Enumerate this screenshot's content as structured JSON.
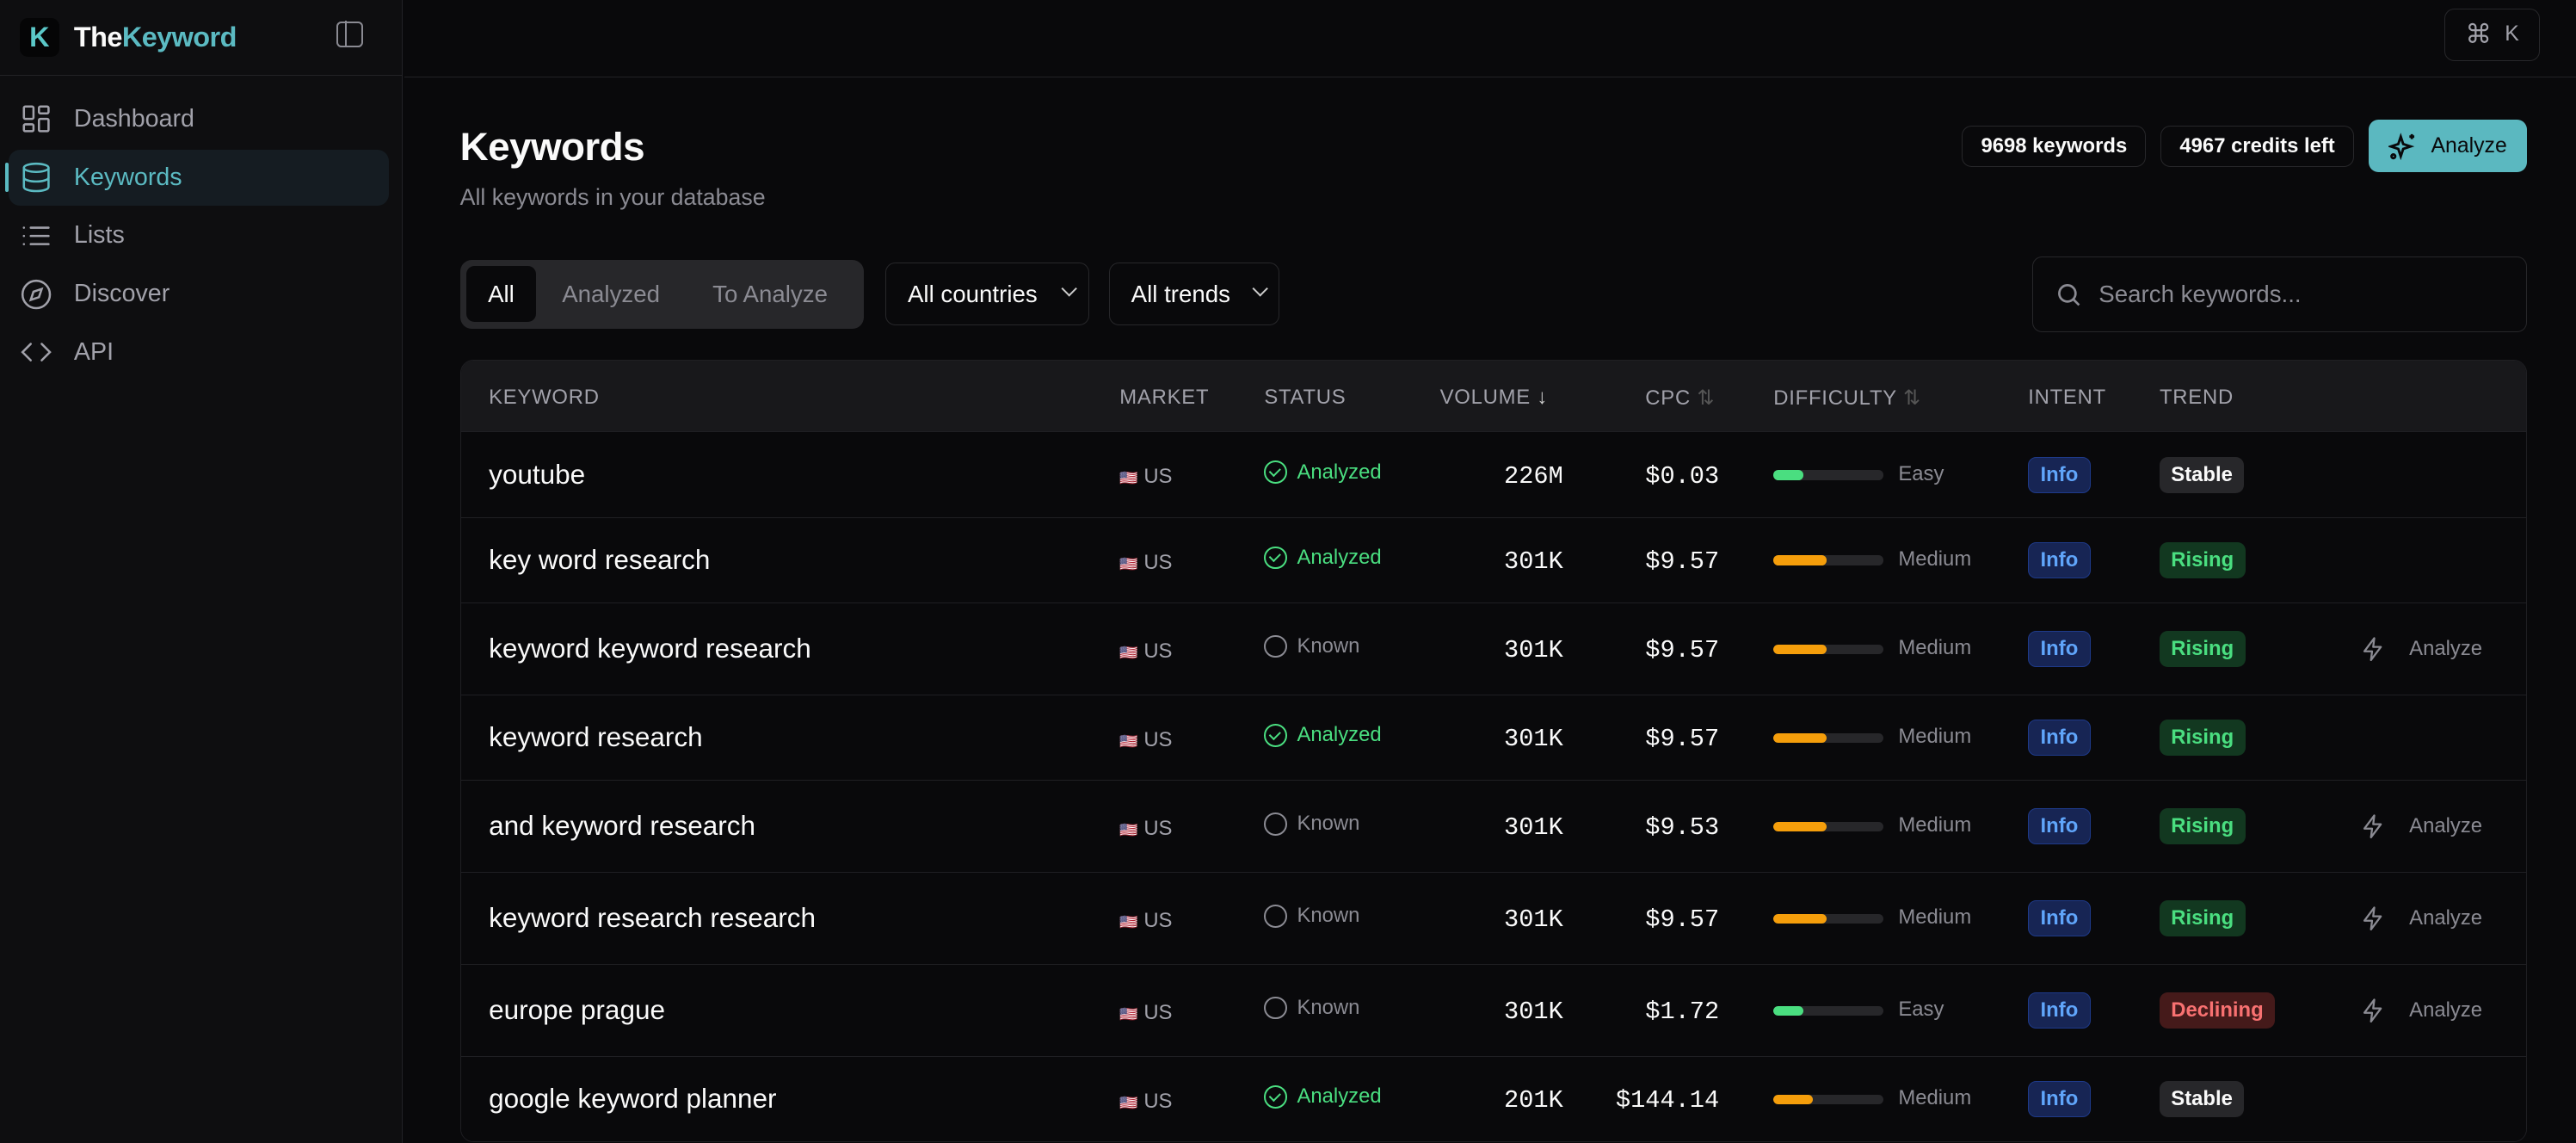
{
  "brand": {
    "name_a": "The",
    "name_b": "Keyword",
    "logo": "K"
  },
  "sidebar": {
    "items": [
      {
        "label": "Dashboard",
        "icon": "dashboard-icon"
      },
      {
        "label": "Keywords",
        "icon": "database-icon",
        "active": true
      },
      {
        "label": "Lists",
        "icon": "list-icon"
      },
      {
        "label": "Discover",
        "icon": "compass-icon"
      },
      {
        "label": "API",
        "icon": "code-icon"
      }
    ]
  },
  "topbar": {
    "cmd_symbol": "⌘",
    "cmd_key": "K"
  },
  "header": {
    "title": "Keywords",
    "subtitle": "All keywords in your database",
    "keywords_count": "9698 keywords",
    "credits": "4967 credits left",
    "analyze_label": "Analyze"
  },
  "filters": {
    "tabs": [
      "All",
      "Analyzed",
      "To Analyze"
    ],
    "active_tab": "All",
    "country": "All countries",
    "trend": "All trends",
    "search_placeholder": "Search keywords..."
  },
  "table": {
    "columns": [
      "KEYWORD",
      "MARKET",
      "STATUS",
      "VOLUME",
      "CPC",
      "DIFFICULTY",
      "INTENT",
      "TREND"
    ],
    "sort_icons": {
      "volume": "↓",
      "cpc": "⇅",
      "difficulty": "⇅"
    },
    "action_label": "Analyze",
    "colors": {
      "easy": "#4ade80",
      "medium": "#f59e0b"
    },
    "rows": [
      {
        "keyword": "youtube",
        "market": "US",
        "status": "Analyzed",
        "volume": "226M",
        "cpc": "$0.03",
        "difficulty": "Easy",
        "difficulty_level": 0.27,
        "intent": "Info",
        "trend": "Stable",
        "action": false
      },
      {
        "keyword": "key word research",
        "market": "US",
        "status": "Analyzed",
        "volume": "301K",
        "cpc": "$9.57",
        "difficulty": "Medium",
        "difficulty_level": 0.48,
        "intent": "Info",
        "trend": "Rising",
        "action": false
      },
      {
        "keyword": "keyword keyword research",
        "market": "US",
        "status": "Known",
        "volume": "301K",
        "cpc": "$9.57",
        "difficulty": "Medium",
        "difficulty_level": 0.48,
        "intent": "Info",
        "trend": "Rising",
        "action": true
      },
      {
        "keyword": "keyword research",
        "market": "US",
        "status": "Analyzed",
        "volume": "301K",
        "cpc": "$9.57",
        "difficulty": "Medium",
        "difficulty_level": 0.48,
        "intent": "Info",
        "trend": "Rising",
        "action": false
      },
      {
        "keyword": "and keyword research",
        "market": "US",
        "status": "Known",
        "volume": "301K",
        "cpc": "$9.53",
        "difficulty": "Medium",
        "difficulty_level": 0.48,
        "intent": "Info",
        "trend": "Rising",
        "action": true
      },
      {
        "keyword": "keyword research research",
        "market": "US",
        "status": "Known",
        "volume": "301K",
        "cpc": "$9.57",
        "difficulty": "Medium",
        "difficulty_level": 0.48,
        "intent": "Info",
        "trend": "Rising",
        "action": true
      },
      {
        "keyword": "europe prague",
        "market": "US",
        "status": "Known",
        "volume": "301K",
        "cpc": "$1.72",
        "difficulty": "Easy",
        "difficulty_level": 0.27,
        "intent": "Info",
        "trend": "Declining",
        "action": true
      },
      {
        "keyword": "google keyword planner",
        "market": "US",
        "status": "Analyzed",
        "volume": "201K",
        "cpc": "$144.14",
        "difficulty": "Medium",
        "difficulty_level": 0.36,
        "intent": "Info",
        "trend": "Stable",
        "action": false
      }
    ]
  }
}
